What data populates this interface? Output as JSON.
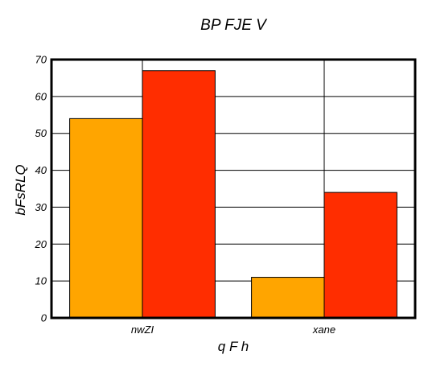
{
  "chart_data": {
    "type": "bar",
    "title": "BP  FJE V",
    "xlabel": "q F h",
    "ylabel": "bFsRLQ",
    "categories": [
      "nwZI",
      "xane"
    ],
    "series": [
      {
        "values": [
          54,
          11
        ],
        "color": "#ffa500"
      },
      {
        "values": [
          67,
          34
        ],
        "color": "#ff2d00"
      }
    ],
    "ylim": [
      0,
      70
    ],
    "yticks": [
      0,
      10,
      20,
      30,
      40,
      50,
      60,
      70
    ],
    "grid": true
  }
}
